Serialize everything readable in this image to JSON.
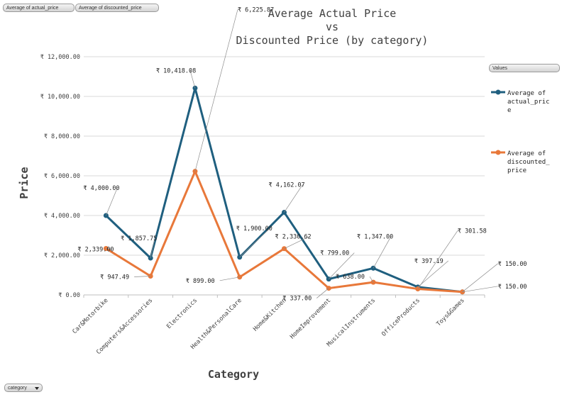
{
  "field_buttons": {
    "actual": "Average of actual_price",
    "discounted": "Average of discounted_price",
    "legend_header": "Values",
    "axis_field": "category"
  },
  "colors": {
    "actual": "#1f5f7f",
    "discounted": "#e8783a",
    "grid": "#d9d9d9",
    "axis": "#bfbfbf",
    "leader": "#8c8c8c"
  },
  "chart_data": {
    "type": "line",
    "title": [
      "Average Actual Price",
      "vs",
      "Discounted Price (by category)"
    ],
    "xlabel": "Category",
    "ylabel": "Price",
    "ylim": [
      0,
      12000
    ],
    "yticks": [
      0,
      2000,
      4000,
      6000,
      8000,
      10000,
      12000
    ],
    "ytick_labels": [
      "₹ 0.00",
      "₹ 2,000.00",
      "₹ 4,000.00",
      "₹ 6,000.00",
      "₹ 8,000.00",
      "₹ 10,000.00",
      "₹ 12,000.00"
    ],
    "grid": true,
    "legend_position": "right",
    "categories": [
      "Car&Motorbike",
      "Computers&Accessories",
      "Electronics",
      "Health&PersonalCare",
      "Home&Kitchen",
      "HomeImprovement",
      "MusicalInstruments",
      "OfficeProducts",
      "Toys&Games"
    ],
    "series": [
      {
        "name": "Average of actual_price",
        "values": [
          4000.0,
          1857.75,
          10418.08,
          1900.0,
          4162.07,
          799.0,
          1347.0,
          397.19,
          150.0
        ],
        "labels": [
          "₹ 4,000.00",
          "₹ 1,857.75",
          "₹ 10,418.08",
          "₹ 1,900.00",
          "₹ 4,162.07",
          "₹ 799.00",
          "₹ 1,347.00",
          "₹ 397.19",
          "₹ 150.00"
        ]
      },
      {
        "name": "Average of discounted_price",
        "values": [
          2339.0,
          947.49,
          6225.87,
          899.0,
          2330.62,
          337.0,
          638.0,
          301.58,
          150.0
        ],
        "labels": [
          "₹ 2,339.00",
          "₹ 947.49",
          "₹ 6,225.87",
          "₹ 899.00",
          "₹ 2,330.62",
          "₹ 337.00",
          "₹ 638.00",
          "₹ 301.58",
          "₹ 150.00"
        ]
      }
    ]
  }
}
